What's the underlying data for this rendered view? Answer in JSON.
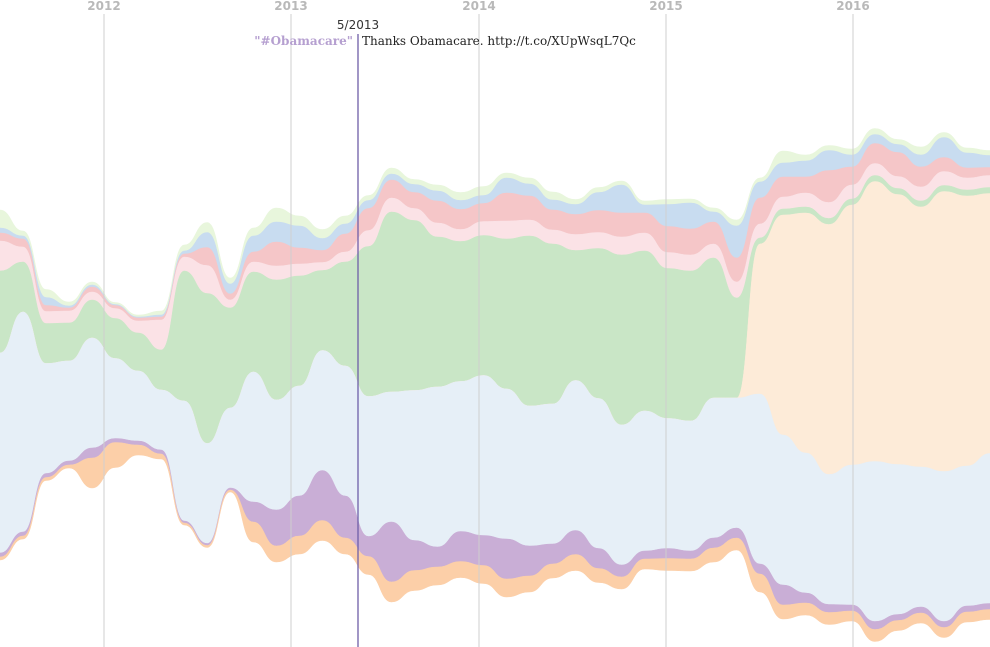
{
  "chart_data": {
    "type": "area",
    "style": "streamgraph",
    "x_axis_labels": [
      "2012",
      "2013",
      "2014",
      "2015",
      "2016"
    ],
    "cursor": {
      "date": "5/2013",
      "tag": "\"#Obamacare\"",
      "text": "Thanks Obamacare. http://t.co/XUpWsqL7Qc"
    },
    "grid": "vertical lines at each year",
    "legend": "none",
    "series": [
      {
        "color": "#e8f6dc",
        "values": [
          18,
          5,
          8,
          4,
          3,
          2,
          2,
          4,
          6,
          10,
          6,
          8,
          14,
          10,
          9,
          8,
          5,
          6,
          5,
          6,
          8,
          9,
          5,
          6,
          8,
          5,
          5,
          4,
          4,
          5,
          4,
          4,
          6,
          4,
          12,
          6,
          5,
          6,
          6,
          5,
          8,
          5,
          5,
          5
        ]
      },
      {
        "color": "#c8dcf0",
        "values": [
          5,
          3,
          8,
          2,
          2,
          1,
          1,
          2,
          3,
          15,
          10,
          16,
          20,
          22,
          12,
          10,
          8,
          6,
          8,
          10,
          9,
          8,
          15,
          12,
          10,
          10,
          18,
          28,
          8,
          22,
          26,
          10,
          32,
          16,
          14,
          16,
          20,
          12,
          9,
          8,
          12,
          20,
          15,
          12
        ]
      },
      {
        "color": "#f5c6c8",
        "values": [
          8,
          8,
          6,
          3,
          5,
          3,
          3,
          3,
          3,
          18,
          6,
          10,
          24,
          16,
          12,
          18,
          22,
          18,
          16,
          22,
          20,
          18,
          28,
          24,
          20,
          20,
          22,
          24,
          20,
          26,
          26,
          22,
          24,
          26,
          20,
          16,
          32,
          18,
          20,
          24,
          20,
          14,
          10,
          8
        ]
      },
      {
        "color": "#fbe2e6",
        "values": [
          30,
          15,
          12,
          12,
          8,
          10,
          12,
          30,
          14,
          28,
          8,
          10,
          14,
          12,
          8,
          10,
          16,
          14,
          12,
          14,
          12,
          14,
          18,
          16,
          14,
          16,
          16,
          18,
          18,
          16,
          16,
          14,
          16,
          14,
          12,
          14,
          16,
          14,
          12,
          12,
          14,
          14,
          12,
          12
        ]
      },
      {
        "color": "#c9e6c6",
        "values": [
          82,
          50,
          40,
          38,
          38,
          40,
          38,
          40,
          130,
          150,
          100,
          100,
          120,
          110,
          80,
          104,
          150,
          180,
          170,
          150,
          140,
          140,
          150,
          170,
          160,
          130,
          150,
          170,
          160,
          150,
          150,
          140,
          100,
          6,
          6,
          6,
          6,
          6,
          6,
          6,
          6,
          6,
          6,
          6
        ]
      },
      {
        "color": "#fdebd8",
        "values": [
          0,
          0,
          0,
          0,
          0,
          0,
          0,
          0,
          0,
          0,
          0,
          0,
          0,
          0,
          0,
          0,
          0,
          0,
          0,
          0,
          0,
          0,
          0,
          0,
          0,
          0,
          0,
          0,
          0,
          0,
          0,
          0,
          0,
          150,
          220,
          240,
          250,
          260,
          280,
          270,
          260,
          280,
          270,
          260
        ]
      },
      {
        "color": "#e6eff7",
        "values": [
          200,
          220,
          110,
          100,
          110,
          80,
          70,
          60,
          120,
          100,
          80,
          130,
          110,
          110,
          120,
          130,
          140,
          130,
          150,
          160,
          150,
          160,
          150,
          140,
          140,
          150,
          150,
          140,
          140,
          130,
          130,
          140,
          130,
          170,
          150,
          140,
          130,
          140,
          160,
          150,
          140,
          150,
          140,
          150
        ]
      },
      {
        "color": "#c9aed6",
        "values": [
          4,
          4,
          4,
          4,
          10,
          4,
          4,
          4,
          2,
          2,
          2,
          20,
          36,
          40,
          50,
          42,
          20,
          60,
          30,
          20,
          30,
          30,
          40,
          30,
          20,
          24,
          20,
          12,
          8,
          10,
          8,
          10,
          10,
          10,
          20,
          10,
          8,
          6,
          8,
          6,
          6,
          6,
          6,
          6
        ]
      },
      {
        "color": "#fccfa8",
        "values": [
          3,
          3,
          3,
          3,
          30,
          25,
          10,
          5,
          2,
          2,
          2,
          20,
          16,
          18,
          20,
          16,
          18,
          20,
          20,
          18,
          16,
          18,
          18,
          16,
          14,
          16,
          14,
          12,
          10,
          12,
          12,
          14,
          12,
          18,
          14,
          12,
          12,
          10,
          12,
          10,
          10,
          10,
          10,
          10
        ]
      }
    ]
  }
}
